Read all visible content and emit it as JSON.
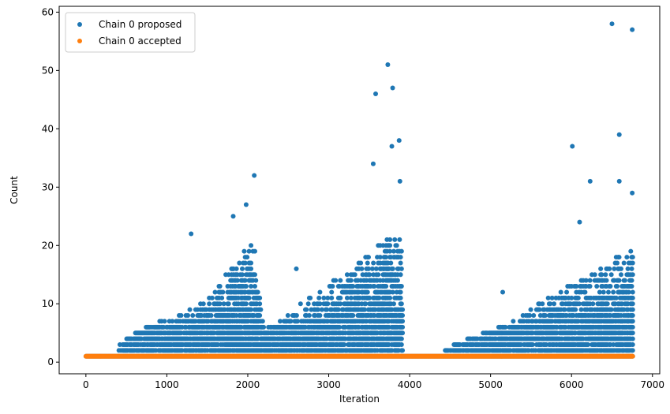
{
  "chart_data": {
    "type": "scatter",
    "title": "",
    "xlabel": "Iteration",
    "ylabel": "Count",
    "xlim": [
      -330,
      7090
    ],
    "ylim": [
      -2,
      61
    ],
    "x_ticks": [
      0,
      1000,
      2000,
      3000,
      4000,
      5000,
      6000,
      7000
    ],
    "y_ticks": [
      0,
      10,
      20,
      30,
      40,
      50,
      60
    ],
    "grid": false,
    "legend_position": "top-left",
    "series": [
      {
        "name": "Chain 0 proposed",
        "color": "#1f77b4",
        "marker": "circle",
        "notable_points": [
          {
            "x": 1300,
            "y": 22
          },
          {
            "x": 1820,
            "y": 25
          },
          {
            "x": 1980,
            "y": 27
          },
          {
            "x": 2080,
            "y": 32
          },
          {
            "x": 2600,
            "y": 16
          },
          {
            "x": 3550,
            "y": 34
          },
          {
            "x": 3580,
            "y": 46
          },
          {
            "x": 3730,
            "y": 51
          },
          {
            "x": 3790,
            "y": 47
          },
          {
            "x": 3780,
            "y": 37
          },
          {
            "x": 3870,
            "y": 38
          },
          {
            "x": 3880,
            "y": 31
          },
          {
            "x": 5150,
            "y": 12
          },
          {
            "x": 6010,
            "y": 37
          },
          {
            "x": 6100,
            "y": 24
          },
          {
            "x": 6230,
            "y": 31
          },
          {
            "x": 6500,
            "y": 58
          },
          {
            "x": 6590,
            "y": 39
          },
          {
            "x": 6590,
            "y": 31
          },
          {
            "x": 6750,
            "y": 57
          },
          {
            "x": 6750,
            "y": 29
          }
        ],
        "envelope": [
          {
            "x": 0,
            "y": 1
          },
          {
            "x": 400,
            "y": 1
          },
          {
            "x": 420,
            "y": 3
          },
          {
            "x": 800,
            "y": 6
          },
          {
            "x": 1200,
            "y": 8
          },
          {
            "x": 1600,
            "y": 12
          },
          {
            "x": 1900,
            "y": 18
          },
          {
            "x": 2080,
            "y": 20
          },
          {
            "x": 2200,
            "y": 5
          },
          {
            "x": 2600,
            "y": 9
          },
          {
            "x": 3000,
            "y": 13
          },
          {
            "x": 3400,
            "y": 17
          },
          {
            "x": 3700,
            "y": 21
          },
          {
            "x": 3900,
            "y": 21
          },
          {
            "x": 3920,
            "y": 1
          },
          {
            "x": 4400,
            "y": 1
          },
          {
            "x": 4450,
            "y": 2
          },
          {
            "x": 4800,
            "y": 4
          },
          {
            "x": 5200,
            "y": 6
          },
          {
            "x": 5600,
            "y": 10
          },
          {
            "x": 6000,
            "y": 13
          },
          {
            "x": 6400,
            "y": 16
          },
          {
            "x": 6760,
            "y": 20
          }
        ]
      },
      {
        "name": "Chain 0 accepted",
        "color": "#ff7f0e",
        "marker": "circle",
        "constant_y": 1,
        "x_range": [
          0,
          6760
        ]
      }
    ]
  }
}
